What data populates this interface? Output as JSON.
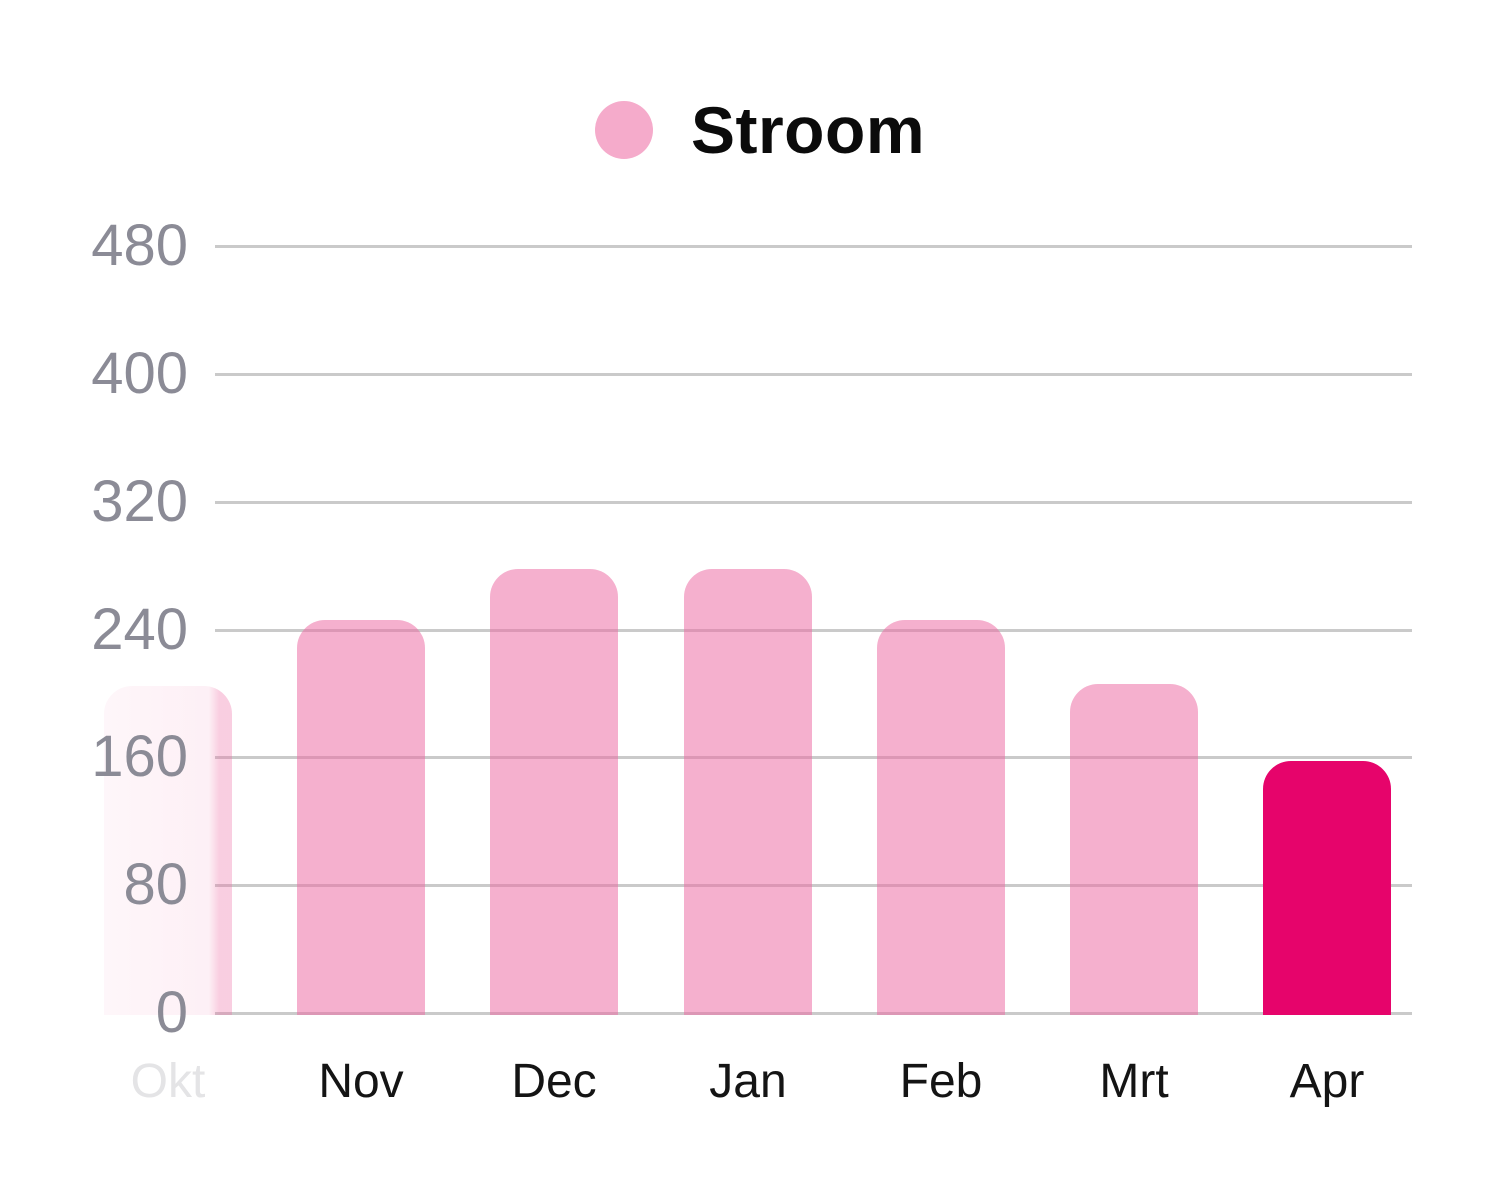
{
  "legend": {
    "series_label": "Stroom",
    "swatch_color": "#F5ABCB"
  },
  "chart_data": {
    "type": "bar",
    "title": "",
    "series_name": "Stroom",
    "categories": [
      "Okt",
      "Nov",
      "Dec",
      "Jan",
      "Feb",
      "Mrt",
      "Apr"
    ],
    "values": [
      205,
      246,
      278,
      278,
      246,
      206,
      158
    ],
    "yticks": [
      0,
      80,
      160,
      240,
      320,
      400,
      480
    ],
    "ylim": [
      0,
      480
    ],
    "grid": true,
    "legend_position": "top-center",
    "highlighted_category": "Apr",
    "faded_category": "Okt",
    "xlabel": "",
    "ylabel": "",
    "colors": {
      "bar_base_rgb": "237,106,163",
      "bar_fill": "rgba(237,106,163,0.53)",
      "bar_highlight": "#E6046B",
      "gridline": "#CACACA",
      "y_tick_label": "#8B8B96",
      "x_tick_label": "#141414",
      "x_tick_label_faded": "#E4E4E6"
    }
  }
}
